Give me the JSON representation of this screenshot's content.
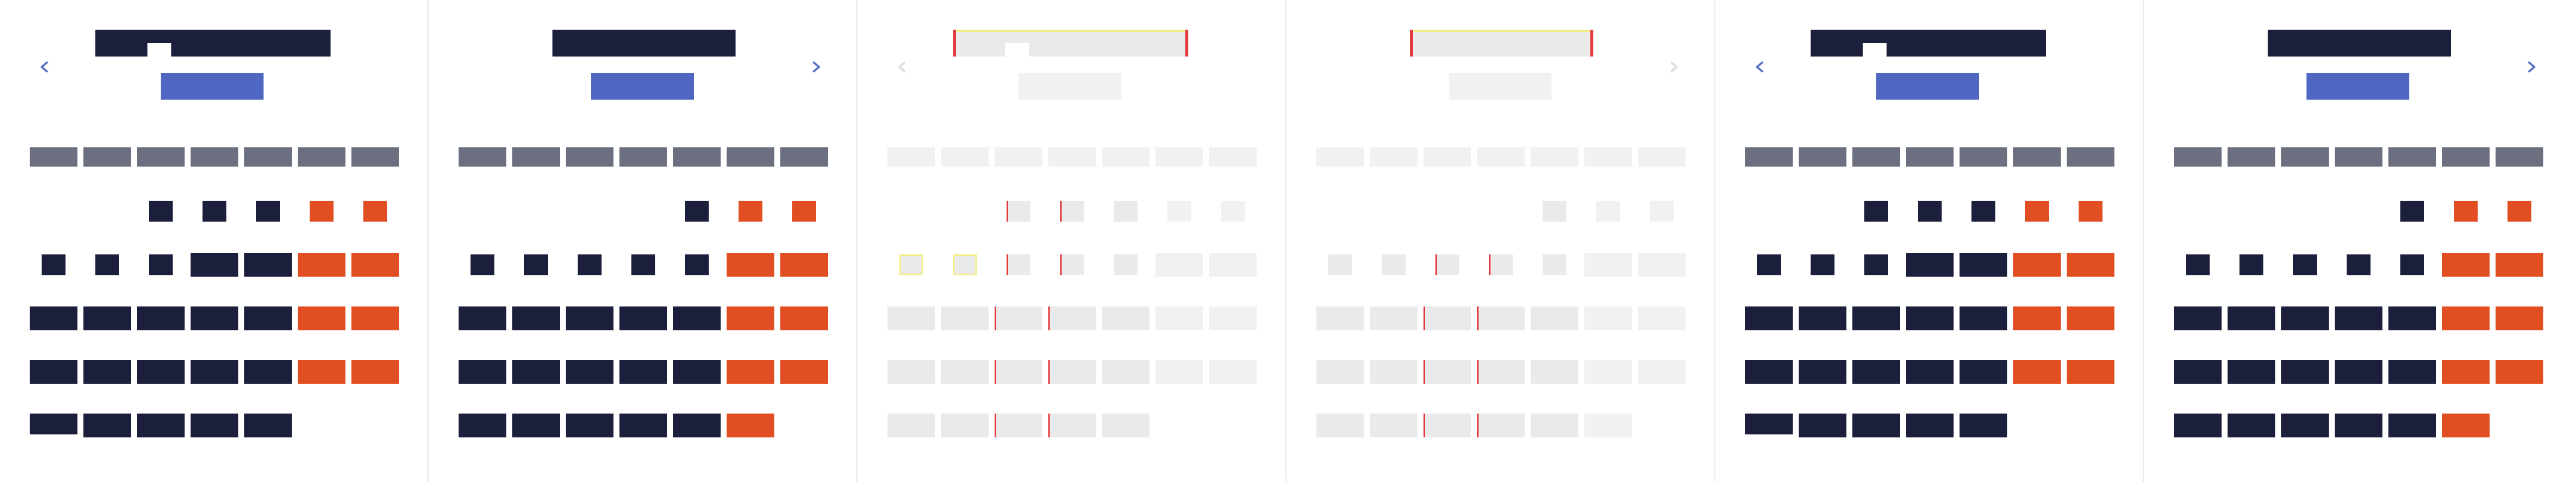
{
  "colors": {
    "dark": "#1c1f3b",
    "weekday": "#6b6f80",
    "weekend": "#e04e22",
    "accent": "#4f67c2",
    "faded": "#e8e8e8",
    "faded_light": "#f0f0f0",
    "nav_icon": "#4f67c2",
    "nav_icon_faded": "#d8d8d8",
    "overlay_red": "#e0262a",
    "overlay_yellow": "#f2ee7c"
  },
  "icons": {
    "prev": "chevron-left-icon",
    "next": "chevron-right-icon"
  },
  "calendars": [
    {
      "id": "cal-1",
      "nav": "prev",
      "style": "normal",
      "first_weekday_index": 2,
      "days_in_month": 31,
      "weekend_columns": [
        5,
        6
      ],
      "highlight_day": 27
    },
    {
      "id": "cal-2",
      "nav": "next",
      "style": "normal",
      "first_weekday_index": 4,
      "days_in_month": 30,
      "weekend_columns": [
        5,
        6
      ],
      "highlight_day": null
    },
    {
      "id": "cal-3",
      "nav": "prev",
      "style": "faded",
      "first_weekday_index": 2,
      "days_in_month": 31,
      "weekend_columns": [
        5,
        6
      ],
      "highlight_day": null
    },
    {
      "id": "cal-4",
      "nav": "next",
      "style": "faded",
      "first_weekday_index": 4,
      "days_in_month": 30,
      "weekend_columns": [
        5,
        6
      ],
      "highlight_day": null
    },
    {
      "id": "cal-5",
      "nav": "prev",
      "style": "normal",
      "first_weekday_index": 2,
      "days_in_month": 31,
      "weekend_columns": [
        5,
        6
      ],
      "highlight_day": 27
    },
    {
      "id": "cal-6",
      "nav": "next",
      "style": "normal",
      "first_weekday_index": 4,
      "days_in_month": 30,
      "weekend_columns": [
        5,
        6
      ],
      "highlight_day": null
    }
  ]
}
